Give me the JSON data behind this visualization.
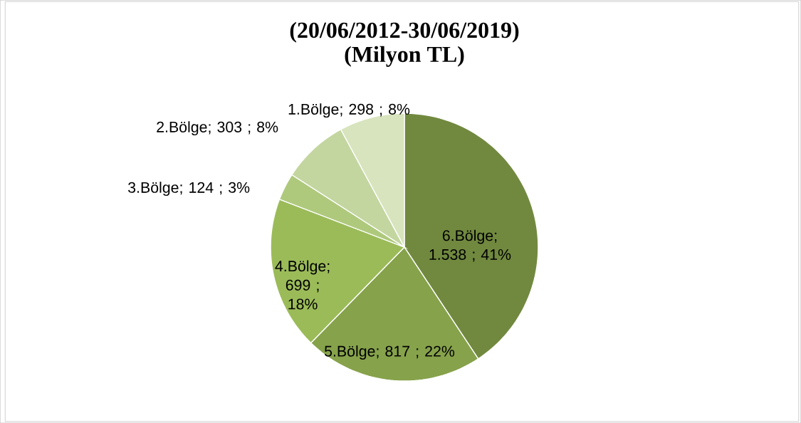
{
  "chart_data": {
    "type": "pie",
    "title": "(20/06/2012-30/06/2019)",
    "subtitle": "(Milyon TL)",
    "categories": [
      "6.Bölge",
      "5.Bölge",
      "4.Bölge",
      "3.Bölge",
      "2.Bölge",
      "1.Bölge"
    ],
    "values": [
      1538,
      817,
      699,
      124,
      303,
      298
    ],
    "value_labels": [
      "; 1.538 ; 41%",
      "; 817 ; 22%",
      "; 699 ; 18%",
      "; 124 ; 3%",
      "; 303 ; 8%",
      "; 298 ; 8%"
    ],
    "colors": [
      "#71893f",
      "#86a24b",
      "#9bbb59",
      "#aec97c",
      "#c3d6a0",
      "#d7e4bd"
    ]
  }
}
